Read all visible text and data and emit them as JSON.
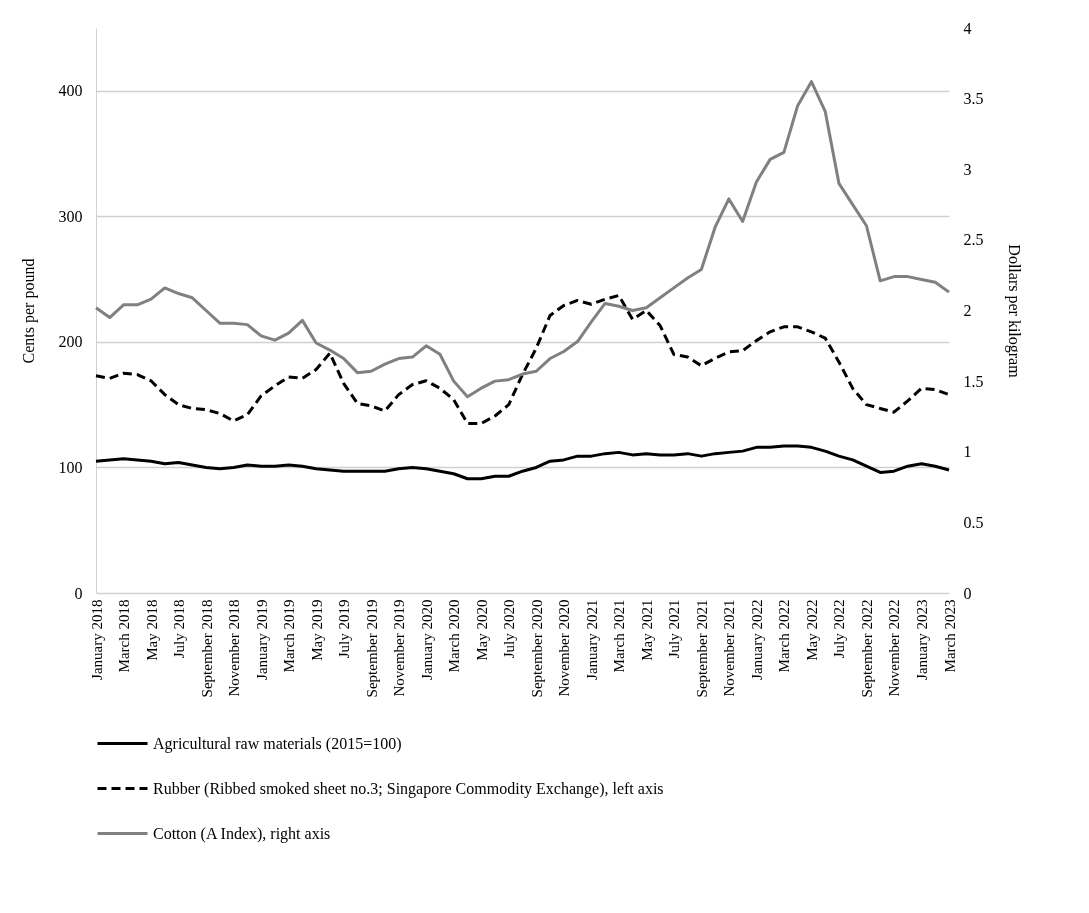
{
  "chart_data": {
    "type": "line",
    "ylabel": "Cents per pound",
    "y2label": "Dollars per kilogram",
    "categories": [
      "January 2018",
      null,
      "March 2018",
      null,
      "May 2018",
      null,
      "July 2018",
      null,
      "September 2018",
      null,
      "November 2018",
      null,
      "January 2019",
      null,
      "March 2019",
      null,
      "May 2019",
      null,
      "July 2019",
      null,
      "September 2019",
      null,
      "November 2019",
      null,
      "January 2020",
      null,
      "March 2020",
      null,
      "May 2020",
      null,
      "July 2020",
      null,
      "September 2020",
      null,
      "November 2020",
      null,
      "January 2021",
      null,
      "March 2021",
      null,
      "May 2021",
      null,
      "July 2021",
      null,
      "September 2021",
      null,
      "November 2021",
      null,
      "January 2022",
      null,
      "March 2022",
      null,
      "May 2022",
      null,
      "July 2022",
      null,
      "September 2022",
      null,
      "November 2022",
      null,
      "January 2023",
      null,
      "March 2023"
    ],
    "series": [
      {
        "name": "Agricultural raw materials (2015=100)",
        "color": "#000000",
        "line_style": "solid",
        "values": [
          105,
          106,
          107,
          106,
          105,
          103,
          104,
          102,
          100,
          99,
          100,
          102,
          101,
          101,
          102,
          101,
          99,
          98,
          97,
          97,
          97,
          97,
          99,
          100,
          99,
          97,
          95,
          91,
          91,
          93,
          93,
          97,
          100,
          105,
          106,
          109,
          109,
          111,
          112,
          110,
          111,
          110,
          110,
          111,
          109,
          111,
          112,
          113,
          116,
          116,
          117,
          117,
          116,
          113,
          109,
          106,
          101,
          96,
          97,
          101,
          103,
          101,
          98
        ]
      },
      {
        "name": "Rubber (Ribbed smoked sheet no.3; Singapore Commodity Exchange), left axis",
        "color": "#000000",
        "line_style": "dashed",
        "values": [
          173,
          171,
          175,
          174,
          169,
          158,
          150,
          147,
          146,
          143,
          137,
          142,
          157,
          165,
          172,
          171,
          178,
          191,
          167,
          151,
          149,
          145,
          158,
          166,
          169,
          163,
          154,
          135,
          135,
          141,
          150,
          174,
          195,
          221,
          229,
          233,
          230,
          234,
          237,
          218,
          225,
          213,
          190,
          188,
          181,
          187,
          192,
          193,
          201,
          208,
          212,
          212,
          208,
          203,
          184,
          163,
          150,
          147,
          144,
          153,
          163,
          162,
          158
        ]
      },
      {
        "name": "Cotton (A Index), right axis",
        "color": "#808080",
        "line_style": "solid",
        "axis": "y2",
        "values": [
          2.02,
          1.95,
          2.04,
          2.04,
          2.08,
          2.16,
          2.12,
          2.09,
          2.0,
          1.91,
          1.91,
          1.9,
          1.82,
          1.79,
          1.84,
          1.93,
          1.77,
          1.72,
          1.66,
          1.56,
          1.57,
          1.62,
          1.66,
          1.67,
          1.75,
          1.69,
          1.5,
          1.39,
          1.45,
          1.5,
          1.51,
          1.55,
          1.57,
          1.66,
          1.71,
          1.78,
          1.92,
          2.05,
          2.03,
          2.0,
          2.02,
          2.09,
          2.16,
          2.23,
          2.29,
          2.59,
          2.79,
          2.63,
          2.91,
          3.07,
          3.12,
          3.45,
          3.62,
          3.41,
          2.9,
          2.75,
          2.6,
          2.21,
          2.24,
          2.24,
          2.22,
          2.2,
          2.13
        ]
      }
    ],
    "ylim": [
      0,
      450
    ],
    "yticks": [
      0,
      100,
      200,
      300,
      400
    ],
    "y2lim": [
      0,
      4
    ],
    "y2ticks": [
      0,
      0.5,
      1,
      1.5,
      2,
      2.5,
      3,
      3.5,
      4
    ],
    "grid": "y",
    "legend": "bottom"
  }
}
